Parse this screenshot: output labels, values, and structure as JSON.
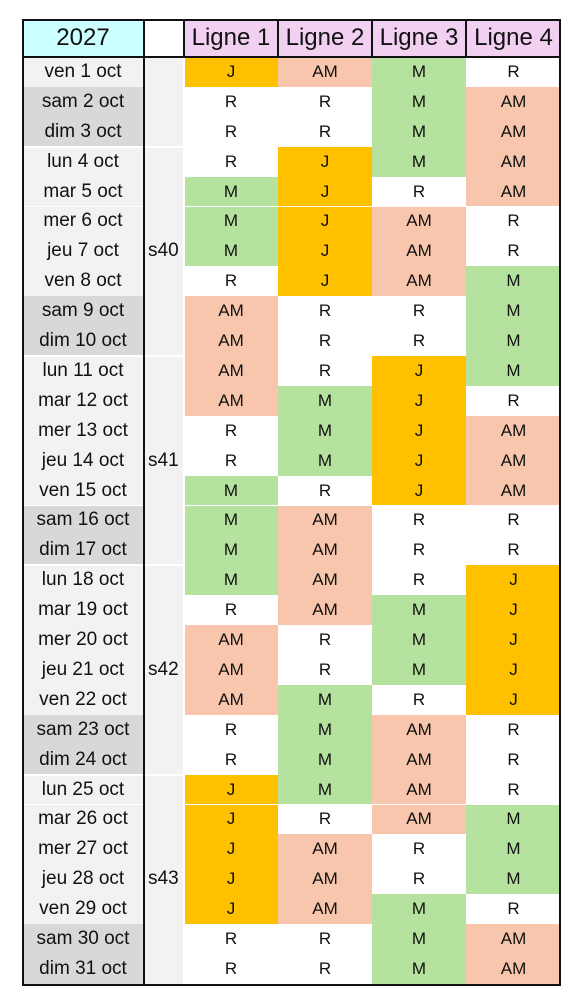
{
  "year": "2027",
  "lines": [
    "Ligne 1",
    "Ligne 2",
    "Ligne 3",
    "Ligne 4"
  ],
  "colors": {
    "year_bg": "#ccffff",
    "line_header_bg": "#f2d0f2",
    "weekday_bg": "#f2f2f2",
    "weekend_bg": "#d8d8d8",
    "week_col_bg": "#f2f2f2",
    "J": "#ffc000",
    "AM": "#f7c6ac",
    "M": "#b6e2a0",
    "R": "#ffffff"
  },
  "days": [
    {
      "date": "ven 1 oct",
      "weekend": false,
      "shifts": [
        "J",
        "AM",
        "M",
        "R"
      ]
    },
    {
      "date": "sam 2 oct",
      "weekend": true,
      "shifts": [
        "R",
        "R",
        "M",
        "AM"
      ]
    },
    {
      "date": "dim 3 oct",
      "weekend": true,
      "shifts": [
        "R",
        "R",
        "M",
        "AM"
      ]
    },
    {
      "date": "lun 4 oct",
      "weekend": false,
      "shifts": [
        "R",
        "J",
        "M",
        "AM"
      ]
    },
    {
      "date": "mar 5 oct",
      "weekend": false,
      "shifts": [
        "M",
        "J",
        "R",
        "AM"
      ]
    },
    {
      "date": "mer 6 oct",
      "weekend": false,
      "shifts": [
        "M",
        "J",
        "AM",
        "R"
      ]
    },
    {
      "date": "jeu 7 oct",
      "weekend": false,
      "shifts": [
        "M",
        "J",
        "AM",
        "R"
      ]
    },
    {
      "date": "ven 8 oct",
      "weekend": false,
      "shifts": [
        "R",
        "J",
        "AM",
        "M"
      ]
    },
    {
      "date": "sam 9 oct",
      "weekend": true,
      "shifts": [
        "AM",
        "R",
        "R",
        "M"
      ]
    },
    {
      "date": "dim 10 oct",
      "weekend": true,
      "shifts": [
        "AM",
        "R",
        "R",
        "M"
      ]
    },
    {
      "date": "lun 11 oct",
      "weekend": false,
      "shifts": [
        "AM",
        "R",
        "J",
        "M"
      ]
    },
    {
      "date": "mar 12 oct",
      "weekend": false,
      "shifts": [
        "AM",
        "M",
        "J",
        "R"
      ]
    },
    {
      "date": "mer 13 oct",
      "weekend": false,
      "shifts": [
        "R",
        "M",
        "J",
        "AM"
      ]
    },
    {
      "date": "jeu 14 oct",
      "weekend": false,
      "shifts": [
        "R",
        "M",
        "J",
        "AM"
      ]
    },
    {
      "date": "ven 15 oct",
      "weekend": false,
      "shifts": [
        "M",
        "R",
        "J",
        "AM"
      ]
    },
    {
      "date": "sam 16 oct",
      "weekend": true,
      "shifts": [
        "M",
        "AM",
        "R",
        "R"
      ]
    },
    {
      "date": "dim 17 oct",
      "weekend": true,
      "shifts": [
        "M",
        "AM",
        "R",
        "R"
      ]
    },
    {
      "date": "lun 18 oct",
      "weekend": false,
      "shifts": [
        "M",
        "AM",
        "R",
        "J"
      ]
    },
    {
      "date": "mar 19 oct",
      "weekend": false,
      "shifts": [
        "R",
        "AM",
        "M",
        "J"
      ]
    },
    {
      "date": "mer 20 oct",
      "weekend": false,
      "shifts": [
        "AM",
        "R",
        "M",
        "J"
      ]
    },
    {
      "date": "jeu 21 oct",
      "weekend": false,
      "shifts": [
        "AM",
        "R",
        "M",
        "J"
      ]
    },
    {
      "date": "ven 22 oct",
      "weekend": false,
      "shifts": [
        "AM",
        "M",
        "R",
        "J"
      ]
    },
    {
      "date": "sam 23 oct",
      "weekend": true,
      "shifts": [
        "R",
        "M",
        "AM",
        "R"
      ]
    },
    {
      "date": "dim 24 oct",
      "weekend": true,
      "shifts": [
        "R",
        "M",
        "AM",
        "R"
      ]
    },
    {
      "date": "lun 25 oct",
      "weekend": false,
      "shifts": [
        "J",
        "M",
        "AM",
        "R"
      ]
    },
    {
      "date": "mar 26 oct",
      "weekend": false,
      "shifts": [
        "J",
        "R",
        "AM",
        "M"
      ]
    },
    {
      "date": "mer 27 oct",
      "weekend": false,
      "shifts": [
        "J",
        "AM",
        "R",
        "M"
      ]
    },
    {
      "date": "jeu 28 oct",
      "weekend": false,
      "shifts": [
        "J",
        "AM",
        "R",
        "M"
      ]
    },
    {
      "date": "ven 29 oct",
      "weekend": false,
      "shifts": [
        "J",
        "AM",
        "M",
        "R"
      ]
    },
    {
      "date": "sam 30 oct",
      "weekend": true,
      "shifts": [
        "R",
        "R",
        "M",
        "AM"
      ]
    },
    {
      "date": "dim 31 oct",
      "weekend": true,
      "shifts": [
        "R",
        "R",
        "M",
        "AM"
      ]
    }
  ],
  "weeks": [
    {
      "label": "",
      "start": 0,
      "end": 2
    },
    {
      "label": "s40",
      "start": 3,
      "end": 9
    },
    {
      "label": "s41",
      "start": 10,
      "end": 16
    },
    {
      "label": "s42",
      "start": 17,
      "end": 23
    },
    {
      "label": "s43",
      "start": 24,
      "end": 30
    }
  ]
}
